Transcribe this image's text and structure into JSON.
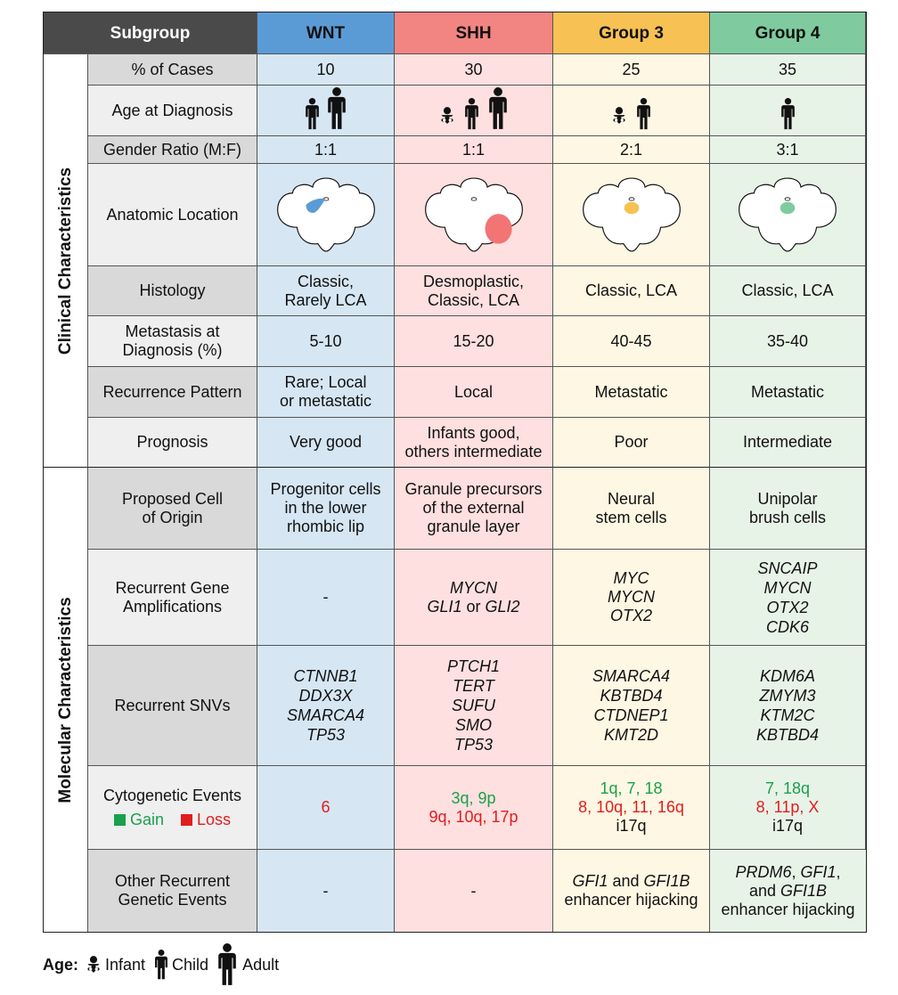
{
  "header": {
    "subgroup": "Subgroup",
    "wnt": "WNT",
    "shh": "SHH",
    "g3": "Group 3",
    "g4": "Group 4"
  },
  "sections": {
    "clinical": "Clinical Characteristics",
    "molecular": "Molecular Characteristics"
  },
  "rows": {
    "cases": {
      "label": "% of Cases",
      "wnt": "10",
      "shh": "30",
      "g3": "25",
      "g4": "35"
    },
    "age": {
      "label": "Age at Diagnosis"
    },
    "gender": {
      "label": "Gender Ratio (M:F)",
      "wnt": "1:1",
      "shh": "1:1",
      "g3": "2:1",
      "g4": "3:1"
    },
    "anatomic": {
      "label": "Anatomic Location"
    },
    "histology": {
      "label": "Histology",
      "wnt": [
        "Classic,",
        "Rarely LCA"
      ],
      "shh": [
        "Desmoplastic,",
        "Classic, LCA"
      ],
      "g3": "Classic, LCA",
      "g4": "Classic, LCA"
    },
    "metastasis": {
      "label": [
        "Metastasis at",
        "Diagnosis (%)"
      ],
      "wnt": "5-10",
      "shh": "15-20",
      "g3": "40-45",
      "g4": "35-40"
    },
    "recurrence": {
      "label": "Recurrence Pattern",
      "wnt": [
        "Rare; Local",
        "or metastatic"
      ],
      "shh": "Local",
      "g3": "Metastatic",
      "g4": "Metastatic"
    },
    "prognosis": {
      "label": "Prognosis",
      "wnt": "Very good",
      "shh": [
        "Infants good,",
        "others intermediate"
      ],
      "g3": "Poor",
      "g4": "Intermediate"
    },
    "origin": {
      "label": [
        "Proposed Cell",
        "of Origin"
      ],
      "wnt": [
        "Progenitor cells",
        "in the lower",
        "rhombic lip"
      ],
      "shh": [
        "Granule precursors",
        "of the external",
        "granule layer"
      ],
      "g3": [
        "Neural",
        "stem cells"
      ],
      "g4": [
        "Unipolar",
        "brush cells"
      ]
    },
    "amplifications": {
      "label": [
        "Recurrent Gene",
        "Amplifications"
      ],
      "wnt": "-",
      "shh": {
        "l1": "MYCN",
        "l2a": "GLI1",
        "l2b": " or ",
        "l2c": "GLI2"
      },
      "g3": [
        "MYC",
        "MYCN",
        "OTX2"
      ],
      "g4": [
        "SNCAIP",
        "MYCN",
        "OTX2",
        "CDK6"
      ]
    },
    "snvs": {
      "label": "Recurrent SNVs",
      "wnt": [
        "CTNNB1",
        "DDX3X",
        "SMARCA4",
        "TP53"
      ],
      "shh": [
        "PTCH1",
        "TERT",
        "SUFU",
        "SMO",
        "TP53"
      ],
      "g3": [
        "SMARCA4",
        "KBTBD4",
        "CTDNEP1",
        "KMT2D"
      ],
      "g4": [
        "KDM6A",
        "ZMYM3",
        "KTM2C",
        "KBTBD4"
      ]
    },
    "cytogenetic": {
      "label": "Cytogenetic Events",
      "gain_label": "Gain",
      "loss_label": "Loss",
      "wnt": {
        "loss": "6"
      },
      "shh": {
        "gain": "3q, 9p",
        "loss": "9q, 10q, 17p"
      },
      "g3": {
        "gain": "1q, 7, 18",
        "loss": "8, 10q, 11, 16q",
        "other": "i17q"
      },
      "g4": {
        "gain": "7, 18q",
        "loss": "8, 11p, X",
        "other": "i17q"
      }
    },
    "other": {
      "label": [
        "Other Recurrent",
        "Genetic Events"
      ],
      "wnt": "-",
      "shh": "-",
      "g3": {
        "a": "GFI1",
        "b": " and ",
        "c": "GFI1B",
        "d": "enhancer hijacking"
      },
      "g4": {
        "a": "PRDM6",
        "b": ", ",
        "c": "GFI1",
        "d": ",",
        "e": "and ",
        "f": "GFI1B",
        "g": "enhancer hijacking"
      }
    }
  },
  "legend": {
    "title": "Age:",
    "infant": "Infant",
    "child": "Child",
    "adult": "Adult"
  },
  "colors": {
    "wnt": "#5b9bd5",
    "shh": "#f28482",
    "g3": "#f7c154",
    "g4": "#7fcb9f",
    "gain": "#1aa04a",
    "loss": "#e21d1d"
  }
}
